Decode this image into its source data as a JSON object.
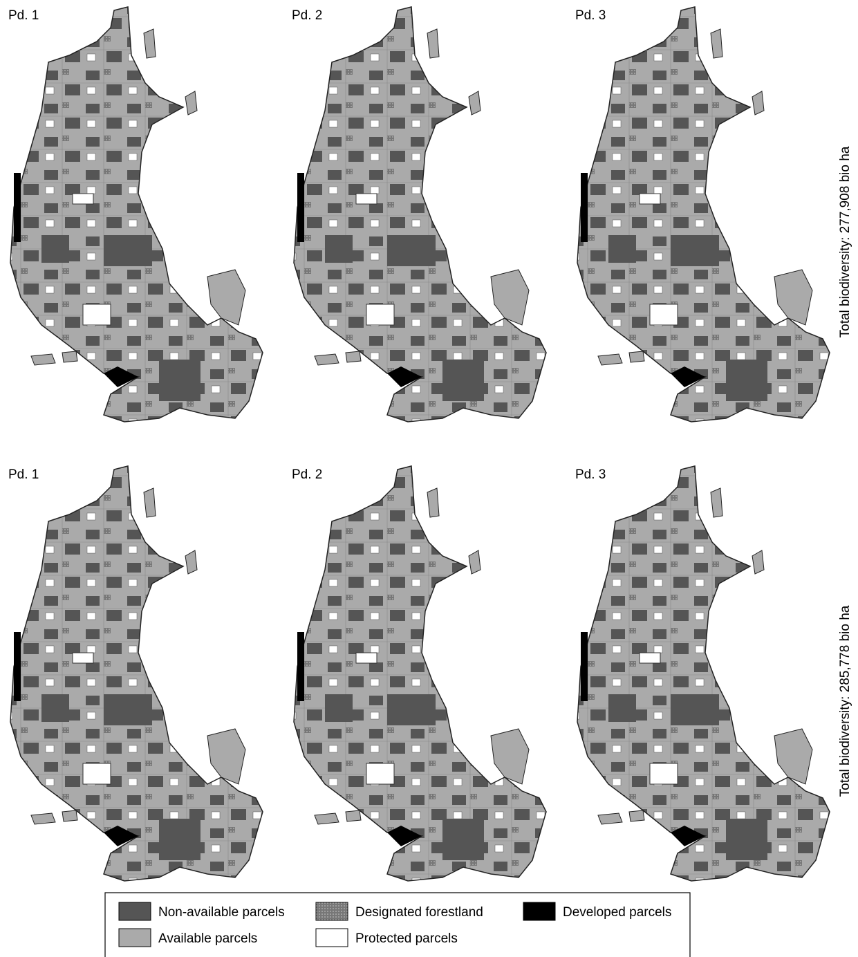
{
  "rows": [
    {
      "panels": [
        "Pd. 1",
        "Pd. 2",
        "Pd. 3"
      ],
      "total_label": "Total biodiversity: 277,908 bio ha"
    },
    {
      "panels": [
        "Pd. 1",
        "Pd. 2",
        "Pd. 3"
      ],
      "total_label": "Total biodiversity: 285,778 bio ha"
    }
  ],
  "legend": {
    "items": [
      "Non-available parcels",
      "Designated forestland",
      "Developed parcels",
      "Available parcels",
      "Protected parcels"
    ]
  }
}
